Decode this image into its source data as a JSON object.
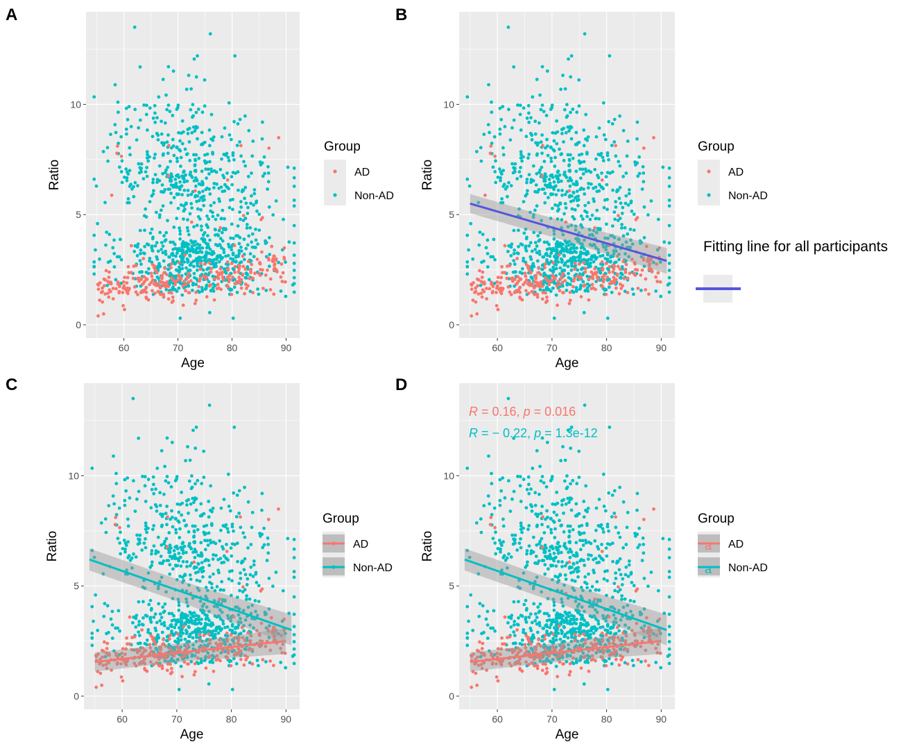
{
  "colors": {
    "ad": "#F8766D",
    "nonad": "#00BFC4",
    "overall": "#5555dd",
    "panel_bg": "#EBEBEB",
    "ribbon": "#bdbdbd"
  },
  "legend": {
    "title": "Group",
    "labels": [
      "AD",
      "Non-AD"
    ]
  },
  "fit_legend": {
    "label": "Fitting line for all participants"
  },
  "stats": {
    "ad": {
      "r_sym": "R",
      "r_text": " = 0.16, ",
      "p_sym": "p",
      "p_text": " = 0.016"
    },
    "nonad": {
      "r_sym": "R",
      "r_text": " = − 0.22, ",
      "p_sym": "p",
      "p_text": " = 1.3e-12"
    }
  },
  "chart_data": [
    {
      "panel": "A",
      "type": "scatter",
      "title": "",
      "xlabel": "Age",
      "ylabel": "Ratio",
      "xlim": [
        53,
        92.5
      ],
      "ylim": [
        -0.6,
        14.2
      ],
      "xticks": [
        60,
        70,
        80,
        90
      ],
      "yticks": [
        0,
        5,
        10
      ],
      "tick_labels_x": [
        "60",
        "70",
        "80",
        "90"
      ],
      "tick_labels_y": [
        "0",
        "5",
        "10"
      ],
      "series": [
        {
          "name": "AD",
          "note": "~300 points, age 55-90, ratio mostly 0.5-3.5, a few up to 9"
        },
        {
          "name": "Non-AD",
          "note": "~1000 points, age 54-92, ratio 0.3-13.5"
        }
      ],
      "fits": []
    },
    {
      "panel": "B",
      "type": "scatter",
      "title": "",
      "xlabel": "Age",
      "ylabel": "Ratio",
      "xlim": [
        53,
        92.5
      ],
      "ylim": [
        -0.6,
        14.2
      ],
      "xticks": [
        60,
        70,
        80,
        90
      ],
      "yticks": [
        0,
        5,
        10
      ],
      "tick_labels_x": [
        "60",
        "70",
        "80",
        "90"
      ],
      "tick_labels_y": [
        "0",
        "5",
        "10"
      ],
      "series": [
        {
          "name": "AD"
        },
        {
          "name": "Non-AD"
        }
      ],
      "fits": [
        {
          "name": "All participants",
          "x": [
            55,
            91
          ],
          "y": [
            5.5,
            2.9
          ],
          "ci": [
            0.35,
            0.5
          ]
        }
      ]
    },
    {
      "panel": "C",
      "type": "scatter",
      "title": "",
      "xlabel": "Age",
      "ylabel": "Ratio",
      "xlim": [
        53,
        92.5
      ],
      "ylim": [
        -0.6,
        14.2
      ],
      "xticks": [
        60,
        70,
        80,
        90
      ],
      "yticks": [
        0,
        5,
        10
      ],
      "tick_labels_x": [
        "60",
        "70",
        "80",
        "90"
      ],
      "tick_labels_y": [
        "0",
        "5",
        "10"
      ],
      "series": [
        {
          "name": "AD"
        },
        {
          "name": "Non-AD"
        }
      ],
      "fits": [
        {
          "name": "AD",
          "x": [
            55,
            90
          ],
          "y": [
            1.55,
            2.5
          ],
          "ci": [
            0.35,
            0.5
          ]
        },
        {
          "name": "Non-AD",
          "x": [
            54,
            91
          ],
          "y": [
            6.2,
            3.0
          ],
          "ci": [
            0.4,
            0.6
          ]
        }
      ]
    },
    {
      "panel": "D",
      "type": "scatter",
      "title": "",
      "xlabel": "Age",
      "ylabel": "Ratio",
      "xlim": [
        53,
        92.5
      ],
      "ylim": [
        -0.6,
        14.2
      ],
      "xticks": [
        60,
        70,
        80,
        90
      ],
      "yticks": [
        0,
        5,
        10
      ],
      "tick_labels_x": [
        "60",
        "70",
        "80",
        "90"
      ],
      "tick_labels_y": [
        "0",
        "5",
        "10"
      ],
      "series": [
        {
          "name": "AD"
        },
        {
          "name": "Non-AD"
        }
      ],
      "fits": [
        {
          "name": "AD",
          "x": [
            55,
            90
          ],
          "y": [
            1.55,
            2.5
          ],
          "ci": [
            0.35,
            0.5
          ]
        },
        {
          "name": "Non-AD",
          "x": [
            54,
            91
          ],
          "y": [
            6.2,
            3.0
          ],
          "ci": [
            0.4,
            0.6
          ]
        }
      ],
      "annotations": [
        {
          "group": "AD",
          "R": 0.16,
          "p": "0.016"
        },
        {
          "group": "Non-AD",
          "R": -0.22,
          "p": "1.3e-12"
        }
      ]
    }
  ]
}
